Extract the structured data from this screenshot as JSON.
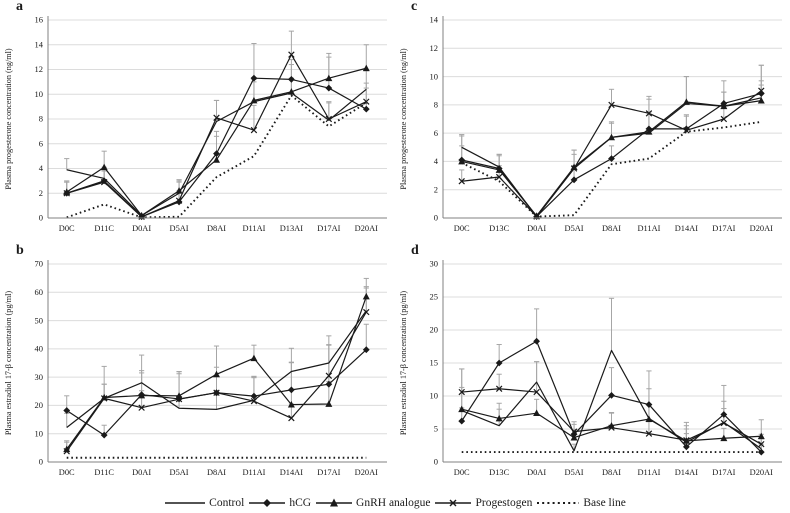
{
  "figure": {
    "legend": {
      "items": [
        {
          "label": "Control",
          "marker": "none",
          "style": "solid"
        },
        {
          "label": "hCG",
          "marker": "diamond",
          "style": "solid"
        },
        {
          "label": "GnRH analogue",
          "marker": "triangle",
          "style": "solid"
        },
        {
          "label": "Progestogen",
          "marker": "x",
          "style": "solid"
        },
        {
          "label": "Base line",
          "marker": "none",
          "style": "dotted"
        }
      ]
    },
    "colors": {
      "series": "#1a1a1a",
      "error_bar": "#a6a6a6",
      "gridline": "#dcdcdc",
      "axis": "#808080",
      "background": "#ffffff"
    }
  },
  "chart_data": [
    {
      "panel": "a",
      "type": "line",
      "ylabel": "Plasma progesterone concentration (ng/ml)",
      "ylim": [
        0,
        16
      ],
      "ytick_step": 2,
      "grid": true,
      "categories": [
        "D0C",
        "D11C",
        "D0AI",
        "D5AI",
        "D8AI",
        "D11AI",
        "D13AI",
        "D17AI",
        "D20AI"
      ],
      "series": [
        {
          "name": "Control",
          "marker": "none",
          "dotted": false,
          "values": [
            3.9,
            3.2,
            0.2,
            2.0,
            7.8,
            9.4,
            10.1,
            7.9,
            10.4
          ],
          "error_up": [
            0.9,
            0.9,
            0.1,
            1.0,
            1.7,
            1.8,
            1.2,
            1.4,
            1.5
          ]
        },
        {
          "name": "hCG",
          "marker": "diamond",
          "dotted": false,
          "values": [
            2.0,
            3.0,
            0.1,
            1.3,
            5.2,
            11.3,
            11.2,
            10.5,
            8.8
          ],
          "error_up": [
            0.9,
            0.8,
            0.1,
            0.9,
            1.4,
            2.8,
            1.6,
            2.5,
            1.7
          ]
        },
        {
          "name": "GnRH analogue",
          "marker": "triangle",
          "dotted": false,
          "values": [
            2.1,
            4.1,
            0.2,
            2.2,
            4.7,
            9.5,
            10.2,
            11.3,
            12.1
          ],
          "error_up": [
            0.8,
            1.3,
            0.1,
            0.9,
            2.3,
            1.5,
            2.2,
            2.0,
            1.9
          ]
        },
        {
          "name": "Progestogen",
          "marker": "x",
          "dotted": false,
          "values": [
            2.0,
            2.9,
            0.1,
            1.4,
            8.1,
            7.1,
            13.2,
            8.0,
            9.4
          ],
          "error_up": [
            1.0,
            0.9,
            0.1,
            1.5,
            1.4,
            2.0,
            1.9,
            1.4,
            1.5
          ]
        },
        {
          "name": "Base line",
          "marker": "none",
          "dotted": true,
          "values": [
            0.05,
            1.1,
            0.05,
            0.1,
            3.3,
            5.0,
            9.9,
            7.4,
            9.3
          ]
        }
      ]
    },
    {
      "panel": "b",
      "type": "line",
      "ylabel": "Plasma estradiol 17-β  concentration (pg/ml)",
      "ylim": [
        0,
        70
      ],
      "ytick_step": 10,
      "grid": true,
      "categories": [
        "D0C",
        "D11C",
        "D0AI",
        "D5AI",
        "D8AI",
        "D11AI",
        "D14AI",
        "D17AI",
        "D20AI"
      ],
      "series": [
        {
          "name": "Control",
          "marker": "none",
          "dotted": false,
          "values": [
            12.2,
            22.5,
            28.0,
            19.0,
            18.6,
            21.8,
            32.0,
            35.0,
            53.5
          ],
          "error_up": [
            5.0,
            5.0,
            9.8,
            4.0,
            5.0,
            8.0,
            8.2,
            9.6,
            8.0
          ]
        },
        {
          "name": "hCG",
          "marker": "diamond",
          "dotted": false,
          "values": [
            18.2,
            9.5,
            23.8,
            22.3,
            24.5,
            23.3,
            25.5,
            27.5,
            39.7
          ],
          "error_up": [
            5.2,
            3.5,
            8.5,
            9.6,
            6.0,
            7.0,
            9.6,
            13.8,
            9.0
          ]
        },
        {
          "name": "GnRH analogue",
          "marker": "triangle",
          "dotted": false,
          "values": [
            4.5,
            22.8,
            23.5,
            23.4,
            31.0,
            36.7,
            20.3,
            20.5,
            58.5
          ],
          "error_up": [
            3.0,
            11.0,
            8.0,
            8.6,
            10.0,
            4.6,
            15.0,
            8.0,
            6.4
          ]
        },
        {
          "name": "Progestogen",
          "marker": "x",
          "dotted": false,
          "values": [
            3.8,
            22.5,
            19.2,
            22.2,
            24.5,
            21.5,
            15.5,
            30.5,
            53.0
          ],
          "error_up": [
            3.2,
            5.0,
            6.0,
            9.0,
            9.0,
            8.6,
            5.0,
            11.0,
            9.0
          ]
        },
        {
          "name": "Base line",
          "marker": "none",
          "dotted": true,
          "values": [
            1.5,
            1.5,
            1.5,
            1.5,
            1.5,
            1.5,
            1.5,
            1.5,
            1.5
          ]
        }
      ]
    },
    {
      "panel": "c",
      "type": "line",
      "ylabel": "Plasma progesterone concentration (ng/ml)",
      "ylim": [
        0,
        14
      ],
      "ytick_step": 2,
      "grid": true,
      "categories": [
        "D0C",
        "D13C",
        "D0AI",
        "D5AI",
        "D8AI",
        "D11AI",
        "D14AI",
        "D17AI",
        "D20AI"
      ],
      "series": [
        {
          "name": "Control",
          "marker": "none",
          "dotted": false,
          "values": [
            5.0,
            3.6,
            0.1,
            3.5,
            5.7,
            6.0,
            8.1,
            7.9,
            8.5
          ],
          "error_up": [
            0.9,
            0.9,
            0.05,
            1.3,
            1.0,
            1.5,
            1.9,
            1.0,
            1.2
          ]
        },
        {
          "name": "hCG",
          "marker": "diamond",
          "dotted": false,
          "values": [
            4.1,
            3.5,
            0.1,
            2.7,
            4.2,
            6.3,
            6.3,
            8.1,
            8.8
          ],
          "error_up": [
            1.0,
            1.0,
            0.05,
            1.0,
            0.9,
            1.2,
            1.0,
            1.6,
            2.0
          ]
        },
        {
          "name": "GnRH analogue",
          "marker": "triangle",
          "dotted": false,
          "values": [
            4.0,
            3.4,
            0.15,
            3.6,
            5.7,
            6.1,
            8.2,
            7.9,
            8.3
          ],
          "error_up": [
            1.8,
            1.0,
            0.05,
            1.2,
            1.1,
            2.3,
            1.8,
            1.0,
            1.1
          ]
        },
        {
          "name": "Progestogen",
          "marker": "x",
          "dotted": false,
          "values": [
            2.6,
            2.9,
            0.1,
            3.5,
            8.0,
            7.4,
            6.2,
            7.0,
            9.0
          ],
          "error_up": [
            0.8,
            0.8,
            0.05,
            1.0,
            1.1,
            1.2,
            1.0,
            1.0,
            1.8
          ]
        },
        {
          "name": "Base line",
          "marker": "none",
          "dotted": true,
          "values": [
            3.9,
            2.6,
            0.1,
            0.2,
            3.8,
            4.2,
            6.1,
            6.4,
            6.8
          ]
        }
      ]
    },
    {
      "panel": "d",
      "type": "line",
      "ylabel": "Plasma estradiol 17-β  concentration (pg/ml)",
      "ylim": [
        0,
        30
      ],
      "ytick_step": 5,
      "grid": true,
      "categories": [
        "D0C",
        "D13C",
        "D0AI",
        "D5AI",
        "D8AI",
        "D11AI",
        "D14AI",
        "D17AI",
        "D20AI"
      ],
      "series": [
        {
          "name": "Control",
          "marker": "none",
          "dotted": false,
          "values": [
            7.8,
            5.5,
            12.1,
            1.7,
            16.9,
            6.6,
            3.0,
            6.0,
            2.0
          ],
          "error_up": [
            3.5,
            2.5,
            3.1,
            1.0,
            7.9,
            4.5,
            2.5,
            3.2,
            1.5
          ]
        },
        {
          "name": "hCG",
          "marker": "diamond",
          "dotted": false,
          "values": [
            6.2,
            15.0,
            18.3,
            4.2,
            10.1,
            8.7,
            2.3,
            7.2,
            1.5
          ],
          "error_up": [
            2.0,
            2.8,
            4.9,
            1.5,
            4.2,
            5.1,
            2.0,
            4.4,
            1.2
          ]
        },
        {
          "name": "GnRH analogue",
          "marker": "triangle",
          "dotted": false,
          "values": [
            8.0,
            6.6,
            7.4,
            3.7,
            5.5,
            6.5,
            3.2,
            3.6,
            3.9
          ],
          "error_up": [
            6.1,
            2.3,
            2.1,
            1.2,
            2.0,
            2.3,
            2.8,
            1.5,
            2.5
          ]
        },
        {
          "name": "Progestogen",
          "marker": "x",
          "dotted": false,
          "values": [
            10.6,
            11.1,
            10.6,
            4.6,
            5.2,
            4.3,
            3.3,
            5.9,
            2.7
          ],
          "error_up": [
            3.5,
            2.2,
            4.6,
            1.5,
            2.2,
            1.8,
            1.7,
            2.2,
            1.5
          ]
        },
        {
          "name": "Base line",
          "marker": "none",
          "dotted": true,
          "values": [
            1.5,
            1.5,
            1.5,
            1.5,
            1.5,
            1.5,
            1.5,
            1.5,
            1.5
          ]
        }
      ]
    }
  ]
}
